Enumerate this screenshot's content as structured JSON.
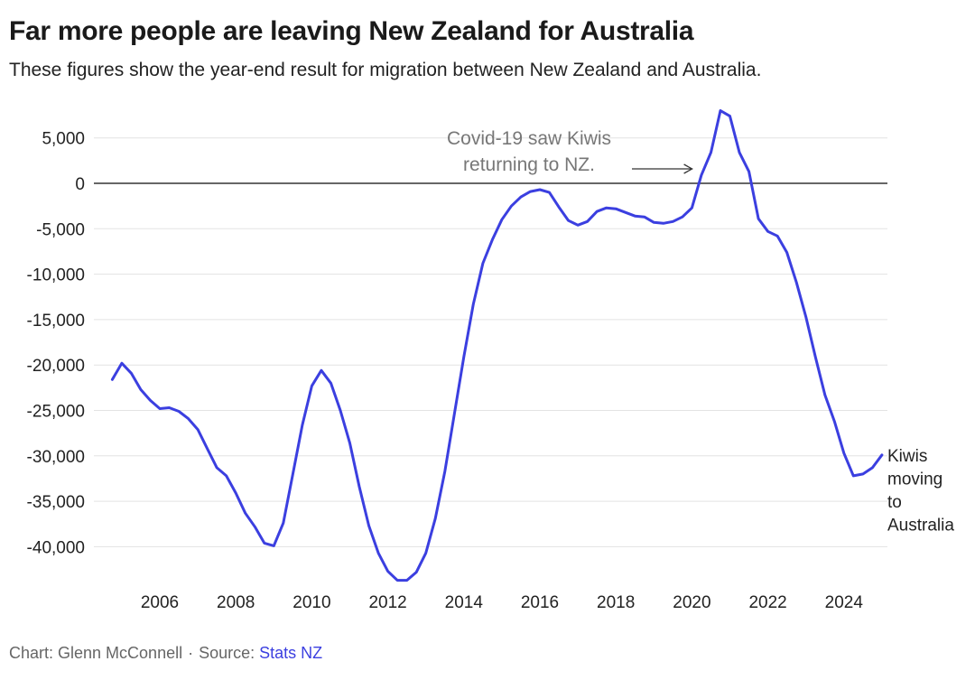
{
  "header": {
    "title": "Far more people are leaving New Zealand for Australia",
    "subtitle": "These figures show the year-end result for migration between New Zealand and Australia."
  },
  "footer": {
    "credit": "Chart: Glenn McConnell",
    "separator": "·",
    "source_prefix": "Source:",
    "source_link": "Stats NZ"
  },
  "colors": {
    "line": "#3b3fe0",
    "grid": "#e3e3e3",
    "zero_line": "#333333",
    "annotation": "#777777"
  },
  "chart_data": {
    "type": "line",
    "title": "Far more people are leaving New Zealand for Australia",
    "xlabel": "",
    "ylabel": "",
    "xlim": [
      2004.5,
      2025.6
    ],
    "ylim": [
      -44000,
      8000
    ],
    "grid": true,
    "x_ticks": [
      2006,
      2008,
      2010,
      2012,
      2014,
      2016,
      2018,
      2020,
      2022,
      2024
    ],
    "x_tick_labels": [
      "2006",
      "2008",
      "2010",
      "2012",
      "2014",
      "2016",
      "2018",
      "2020",
      "2022",
      "2024"
    ],
    "y_ticks": [
      5000,
      0,
      -5000,
      -10000,
      -15000,
      -20000,
      -25000,
      -30000,
      -35000,
      -40000
    ],
    "y_tick_labels": [
      "5,000",
      "0",
      "-5,000",
      "-10,000",
      "-15,000",
      "-20,000",
      "-25,000",
      "-30,000",
      "-35,000",
      "-40,000"
    ],
    "series": [
      {
        "name": "Kiwis moving to Australia",
        "x": [
          2004.75,
          2005.0,
          2005.25,
          2005.5,
          2005.75,
          2006.0,
          2006.25,
          2006.5,
          2006.75,
          2007.0,
          2007.25,
          2007.5,
          2007.75,
          2008.0,
          2008.25,
          2008.5,
          2008.75,
          2009.0,
          2009.25,
          2009.5,
          2009.75,
          2010.0,
          2010.25,
          2010.5,
          2010.75,
          2011.0,
          2011.25,
          2011.5,
          2011.75,
          2012.0,
          2012.25,
          2012.5,
          2012.75,
          2013.0,
          2013.25,
          2013.5,
          2013.75,
          2014.0,
          2014.25,
          2014.5,
          2014.75,
          2015.0,
          2015.25,
          2015.5,
          2015.75,
          2016.0,
          2016.25,
          2016.5,
          2016.75,
          2017.0,
          2017.25,
          2017.5,
          2017.75,
          2018.0,
          2018.25,
          2018.5,
          2018.75,
          2019.0,
          2019.25,
          2019.5,
          2019.75,
          2020.0,
          2020.25,
          2020.5,
          2020.75,
          2021.0,
          2021.25,
          2021.5,
          2021.75,
          2022.0,
          2022.25,
          2022.5,
          2022.75,
          2023.0,
          2023.25,
          2023.5,
          2023.75,
          2024.0,
          2024.25,
          2024.5,
          2024.75,
          2025.0
        ],
        "values": [
          -21600,
          -19800,
          -20900,
          -22700,
          -23900,
          -24800,
          -24700,
          -25100,
          -25900,
          -27100,
          -29200,
          -31300,
          -32200,
          -34100,
          -36300,
          -37800,
          -39600,
          -39900,
          -37400,
          -32000,
          -26600,
          -22300,
          -20600,
          -22000,
          -25000,
          -28600,
          -33400,
          -37700,
          -40700,
          -42700,
          -43700,
          -43700,
          -42800,
          -40700,
          -36900,
          -31700,
          -25400,
          -19100,
          -13300,
          -8800,
          -6200,
          -4000,
          -2500,
          -1500,
          -900,
          -700,
          -1000,
          -2600,
          -4100,
          -4600,
          -4200,
          -3100,
          -2700,
          -2800,
          -3200,
          -3600,
          -3700,
          -4300,
          -4400,
          -4200,
          -3700,
          -2700,
          900,
          3400,
          8000,
          7400,
          3400,
          1300,
          -3900,
          -5300,
          -5800,
          -7600,
          -10900,
          -14700,
          -19100,
          -23300,
          -26200,
          -29700,
          -32200,
          -32000,
          -31300,
          -29900
        ]
      }
    ],
    "annotations": [
      {
        "text_lines": [
          "Covid-19 saw Kiwis",
          "returning to NZ."
        ],
        "target": [
          2020.1,
          1500
        ]
      }
    ],
    "end_label_lines": [
      "Kiwis",
      "moving",
      "to",
      "Australia"
    ],
    "legend": "none"
  }
}
